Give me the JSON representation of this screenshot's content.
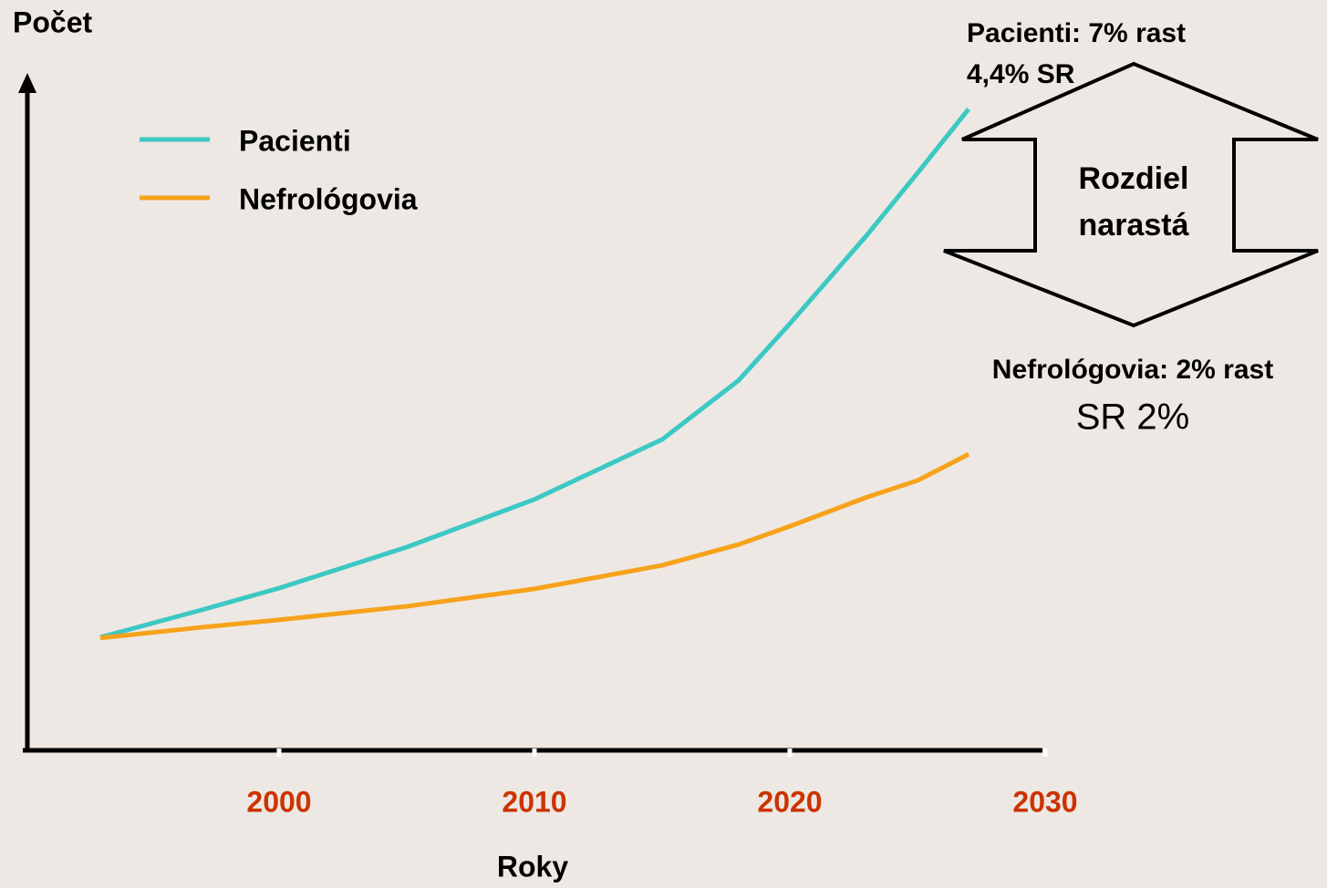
{
  "chart_data": {
    "type": "line",
    "y_label": "Počet",
    "x_label": "Roky",
    "x": [
      1993,
      1997,
      2000,
      2005,
      2010,
      2015,
      2018,
      2020,
      2023,
      2025,
      2027
    ],
    "xlim": [
      1990,
      2030
    ],
    "xticks": [
      2000,
      2010,
      2020,
      2030
    ],
    "ylim": [
      0,
      100
    ],
    "legend": "upper left",
    "series": [
      {
        "name": "Pacienti",
        "color": "#3cc8c4",
        "values": [
          16.8,
          20.9,
          24.1,
          30.2,
          37.3,
          46.2,
          55.0,
          63.4,
          76.5,
          85.8,
          95.3
        ]
      },
      {
        "name": "Nefrológovia",
        "color": "#f7a21b",
        "values": [
          16.7,
          18.3,
          19.4,
          21.4,
          24.0,
          27.5,
          30.6,
          33.3,
          37.6,
          40.1,
          44.0
        ]
      }
    ],
    "annotations": {
      "patients": [
        "Pacienti: 7% rast",
        "4,4% SR"
      ],
      "gap": [
        "Rozdiel",
        "narastá"
      ],
      "nephrologists": [
        "Nefrológovia: 2% rast",
        "SR 2%"
      ]
    }
  }
}
